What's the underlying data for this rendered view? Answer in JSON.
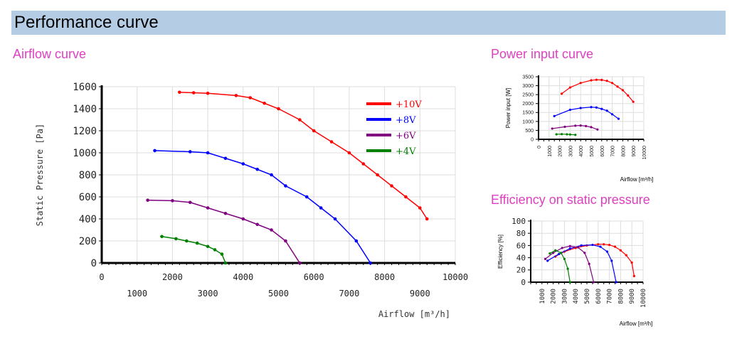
{
  "header": {
    "title": "Performance curve"
  },
  "sections": {
    "airflow": "Airflow curve",
    "power": "Power input curve",
    "efficiency": "Efficiency on static pressure"
  },
  "colors": {
    "header_bg": "#b4cde4",
    "section_title": "#e040c0"
  },
  "chart_data": [
    {
      "id": "airflow",
      "type": "line",
      "title": "Airflow curve",
      "xlabel": "Airflow [m³/h]",
      "ylabel": "Static Pressure [Pa]",
      "xlim": [
        0,
        10000
      ],
      "ylim": [
        0,
        1600
      ],
      "xticks_upper": [
        "0",
        "2000",
        "4000",
        "6000",
        "8000",
        "10000"
      ],
      "xticks_lower": [
        "1000",
        "3000",
        "5000",
        "7000",
        "9000"
      ],
      "yticks": [
        "0",
        "200",
        "400",
        "600",
        "800",
        "1000",
        "1200",
        "1400",
        "1600"
      ],
      "grid": true,
      "legend": "top-right",
      "series": [
        {
          "name": "+10V",
          "color": "#ff0000",
          "x": [
            2200,
            2600,
            3000,
            3800,
            4200,
            4600,
            5000,
            5600,
            6000,
            6500,
            7000,
            7400,
            7800,
            8200,
            8600,
            9000,
            9200
          ],
          "y": [
            1550,
            1545,
            1540,
            1520,
            1500,
            1450,
            1400,
            1300,
            1200,
            1100,
            1000,
            900,
            800,
            700,
            600,
            500,
            400
          ]
        },
        {
          "name": "+8V",
          "color": "#0000ff",
          "x": [
            1500,
            2500,
            3000,
            3500,
            4000,
            4400,
            4800,
            5200,
            5800,
            6200,
            6600,
            7200,
            7600
          ],
          "y": [
            1020,
            1010,
            1000,
            950,
            900,
            850,
            800,
            700,
            600,
            500,
            400,
            200,
            0
          ]
        },
        {
          "name": "+6V",
          "color": "#800080",
          "x": [
            1300,
            2000,
            2500,
            3000,
            3500,
            4000,
            4400,
            4800,
            5200,
            5600
          ],
          "y": [
            570,
            565,
            550,
            500,
            450,
            400,
            350,
            300,
            200,
            0
          ]
        },
        {
          "name": "+4V",
          "color": "#008000",
          "x": [
            1700,
            2100,
            2400,
            2700,
            3000,
            3200,
            3400,
            3500
          ],
          "y": [
            240,
            220,
            200,
            180,
            150,
            120,
            80,
            0
          ]
        }
      ]
    },
    {
      "id": "power",
      "type": "line",
      "title": "Power input curve",
      "xlabel": "Airflow [m³/h]",
      "ylabel": "Power input [W]",
      "xlim": [
        0,
        10000
      ],
      "ylim": [
        0,
        3500
      ],
      "xticks": [
        "0",
        "1000",
        "2000",
        "3000",
        "4000",
        "5000",
        "6000",
        "7000",
        "8000",
        "9000",
        "10000"
      ],
      "yticks": [
        "0",
        "500",
        "1000",
        "1500",
        "2000",
        "2500",
        "3000",
        "3500"
      ],
      "grid": true,
      "series": [
        {
          "name": "+10V",
          "color": "#ff0000",
          "x": [
            2200,
            3000,
            4000,
            5000,
            5500,
            6000,
            6500,
            7000,
            7500,
            8000,
            8500,
            9000
          ],
          "y": [
            2550,
            2900,
            3150,
            3300,
            3330,
            3320,
            3270,
            3150,
            2950,
            2750,
            2450,
            2100
          ]
        },
        {
          "name": "+8V",
          "color": "#0000ff",
          "x": [
            1500,
            3000,
            4000,
            5000,
            5500,
            6000,
            6500,
            7000,
            7600
          ],
          "y": [
            1300,
            1650,
            1750,
            1800,
            1780,
            1700,
            1600,
            1400,
            1150
          ]
        },
        {
          "name": "+6V",
          "color": "#800080",
          "x": [
            1300,
            2500,
            3500,
            4000,
            4500,
            5000,
            5600
          ],
          "y": [
            600,
            700,
            760,
            770,
            740,
            680,
            550
          ]
        },
        {
          "name": "+4V",
          "color": "#008000",
          "x": [
            1700,
            2200,
            2700,
            3000,
            3500
          ],
          "y": [
            280,
            290,
            280,
            270,
            250
          ]
        }
      ]
    },
    {
      "id": "efficiency",
      "type": "line",
      "title": "Efficiency on static pressure",
      "xlabel": "Airflow [m³/h]",
      "ylabel": "Efficiency [%]",
      "xlim": [
        0,
        10000
      ],
      "ylim": [
        0,
        100
      ],
      "xticks": [
        "1000",
        "2000",
        "3000",
        "4000",
        "5000",
        "6000",
        "7000",
        "8000",
        "9000",
        "10000"
      ],
      "yticks": [
        "0",
        "20",
        "40",
        "60",
        "80",
        "100"
      ],
      "grid": true,
      "series": [
        {
          "name": "+10V",
          "color": "#ff0000",
          "x": [
            2200,
            3000,
            4000,
            5000,
            6000,
            6500,
            7000,
            7500,
            8000,
            8500,
            9000,
            9200
          ],
          "y": [
            42,
            50,
            56,
            60,
            62,
            62,
            61,
            58,
            52,
            44,
            32,
            10
          ]
        },
        {
          "name": "+8V",
          "color": "#0000ff",
          "x": [
            1500,
            2500,
            3500,
            4500,
            5500,
            6200,
            6800,
            7200,
            7600
          ],
          "y": [
            35,
            46,
            55,
            60,
            61,
            58,
            50,
            35,
            0
          ]
        },
        {
          "name": "+6V",
          "color": "#800080",
          "x": [
            1300,
            2000,
            2800,
            3500,
            4200,
            4800,
            5200,
            5600
          ],
          "y": [
            38,
            48,
            56,
            59,
            57,
            48,
            30,
            0
          ]
        },
        {
          "name": "+4V",
          "color": "#008000",
          "x": [
            1700,
            2200,
            2700,
            3000,
            3300,
            3500
          ],
          "y": [
            47,
            52,
            48,
            38,
            22,
            0
          ]
        }
      ]
    }
  ]
}
